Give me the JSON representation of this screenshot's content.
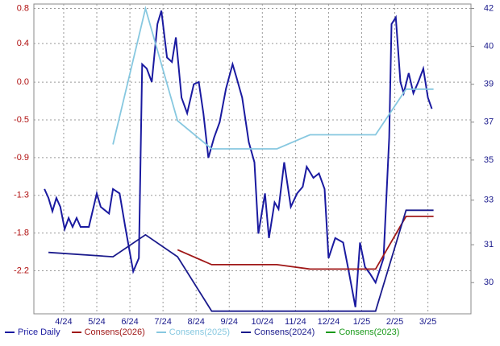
{
  "chart_data": {
    "type": "line",
    "xlim": [
      0.1,
      13.3
    ],
    "xticks": [
      {
        "value": 1,
        "label": "4/24"
      },
      {
        "value": 2,
        "label": "5/24"
      },
      {
        "value": 3,
        "label": "6/24"
      },
      {
        "value": 4,
        "label": "7/24"
      },
      {
        "value": 5,
        "label": "8/24"
      },
      {
        "value": 6,
        "label": "9/24"
      },
      {
        "value": 7,
        "label": "10/24"
      },
      {
        "value": 8,
        "label": "11/24"
      },
      {
        "value": 9,
        "label": "12/24"
      },
      {
        "value": 10,
        "label": "1/25"
      },
      {
        "value": 11,
        "label": "2/25"
      },
      {
        "value": 12,
        "label": "3/25"
      }
    ],
    "ylim": [
      -2.68,
      0.85
    ],
    "yticks": [
      0.8,
      {
        "value": 0.4,
        "label": "0.4"
      },
      {
        "value": -0.04,
        "label": "0.0"
      },
      {
        "value": -0.47,
        "label": "-0.5"
      },
      -0.9,
      {
        "value": -1.33,
        "label": "-1.3"
      },
      {
        "value": -1.76,
        "label": "-1.8"
      },
      {
        "value": -2.19,
        "label": "-2.2"
      }
    ],
    "y2lim": [
      28.3,
      42.2
    ],
    "y2ticks": [
      42,
      {
        "value": 40.3,
        "label": "40"
      },
      {
        "value": 38.6,
        "label": "39"
      },
      {
        "value": 36.9,
        "label": "37"
      },
      {
        "value": 35.2,
        "label": "35"
      },
      {
        "value": 33.4,
        "label": "33"
      },
      {
        "value": 31.4,
        "label": "31"
      },
      {
        "value": 29.7,
        "label": "30"
      }
    ],
    "grid": true,
    "series": [
      {
        "name": "Price Daily",
        "color": "#1a1aa0",
        "axis": "y2",
        "x": [
          0.42,
          0.54,
          0.66,
          0.78,
          0.9,
          1.03,
          1.15,
          1.27,
          1.39,
          1.51,
          1.76,
          2.0,
          2.12,
          2.37,
          2.49,
          2.69,
          2.86,
          3.1,
          3.27,
          3.37,
          3.51,
          3.66,
          3.83,
          3.95,
          4.12,
          4.27,
          4.39,
          4.56,
          4.73,
          4.93,
          5.08,
          5.22,
          5.37,
          5.54,
          5.71,
          5.9,
          6.1,
          6.22,
          6.39,
          6.59,
          6.76,
          6.88,
          7.08,
          7.2,
          7.37,
          7.49,
          7.66,
          7.86,
          8.05,
          8.22,
          8.34,
          8.54,
          8.71,
          8.88,
          9.0,
          9.2,
          9.44,
          9.61,
          9.81,
          9.95,
          10.1,
          10.25,
          10.42,
          10.66,
          10.83,
          10.9,
          11.03,
          11.17,
          11.27,
          11.42,
          11.56,
          11.71,
          11.86,
          12.0,
          12.12
        ],
        "values": [
          33.9,
          33.5,
          32.9,
          33.5,
          33.1,
          32.1,
          32.6,
          32.2,
          32.6,
          32.2,
          32.2,
          33.7,
          33.1,
          32.8,
          33.9,
          33.7,
          32.2,
          30.2,
          30.8,
          39.5,
          39.3,
          38.7,
          41.3,
          41.9,
          39.8,
          39.6,
          40.7,
          38.0,
          37.3,
          38.6,
          38.7,
          37.3,
          35.3,
          36.2,
          36.9,
          38.4,
          39.5,
          38.9,
          38.0,
          36.0,
          35.1,
          31.9,
          33.7,
          31.7,
          33.3,
          33.0,
          35.1,
          33.1,
          33.7,
          34.0,
          34.9,
          34.4,
          34.6,
          33.9,
          30.8,
          31.7,
          31.5,
          30.2,
          28.6,
          31.5,
          30.4,
          30.1,
          29.7,
          30.8,
          36.2,
          41.3,
          41.6,
          38.7,
          38.2,
          39.1,
          38.2,
          38.7,
          39.3,
          38.0,
          37.5
        ]
      },
      {
        "name": "Consens(2026)",
        "color": "#a01818",
        "x": [
          4.44,
          5.47,
          7.44,
          8.44,
          10.42,
          11.34,
          12.17
        ],
        "values": [
          -1.95,
          -2.12,
          -2.12,
          -2.17,
          -2.17,
          -1.57,
          -1.57
        ]
      },
      {
        "name": "Consens(2025)",
        "color": "#87c8e0",
        "x": [
          2.49,
          3.47,
          4.44,
          5.47,
          7.44,
          8.44,
          10.42,
          11.34,
          12.17
        ],
        "values": [
          -0.75,
          0.8,
          -0.48,
          -0.8,
          -0.8,
          -0.64,
          -0.64,
          -0.12,
          -0.12
        ]
      },
      {
        "name": "Consens(2024)",
        "color": "#1a1a8c",
        "x": [
          0.54,
          2.49,
          3.47,
          4.44,
          5.47,
          10.42,
          11.34,
          12.17
        ],
        "values": [
          -1.98,
          -2.03,
          -1.78,
          -2.03,
          -2.65,
          -2.65,
          -1.5,
          -1.5
        ]
      },
      {
        "name": "Consens(2023)",
        "color": "#1a9a1a",
        "x": [],
        "values": []
      }
    ]
  }
}
